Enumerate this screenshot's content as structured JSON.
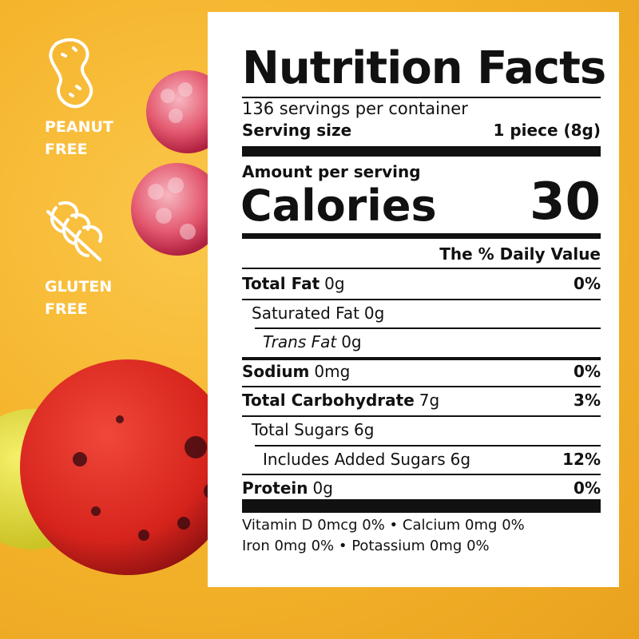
{
  "badges": [
    {
      "lines": [
        "PEANUT",
        "FREE"
      ]
    },
    {
      "lines": [
        "GLUTEN",
        "FREE"
      ]
    }
  ],
  "label": {
    "title": "Nutrition Facts",
    "servings": "136 servings per container",
    "serving_size_label": "Serving size",
    "serving_size": "1 piece (8g)",
    "amount_per_serving": "Amount per serving",
    "calories_label": "Calories",
    "calories": "30",
    "daily_value_header": "The % Daily Value",
    "rows": [
      {
        "name": "Total Fat",
        "amount": "0g",
        "dv": "0%",
        "bold": true,
        "indent": 0
      },
      {
        "name": "Saturated Fat",
        "amount": "0g",
        "indent": 1
      },
      {
        "name": "Trans Fat",
        "amount": "0g",
        "italic": true,
        "indent": 2
      },
      {
        "name": "Sodium",
        "amount": "0mg",
        "dv": "0%",
        "bold": true,
        "indent": 0
      },
      {
        "name": "Total Carbohydrate",
        "amount": "7g",
        "dv": "3%",
        "bold": true,
        "indent": 0
      },
      {
        "name": "Total Sugars",
        "amount": "6g",
        "indent": 1
      },
      {
        "name": "Includes Added Sugars",
        "amount": "6g",
        "dv": "12%",
        "indent": 2
      },
      {
        "name": "Protein",
        "amount": "0g",
        "dv": "0%",
        "bold": true,
        "indent": 0
      }
    ],
    "footer": [
      "Vitamin D 0mcg 0% • Calcium 0mg 0%",
      "Iron 0mg 0% • Potassium 0mg 0%"
    ]
  }
}
